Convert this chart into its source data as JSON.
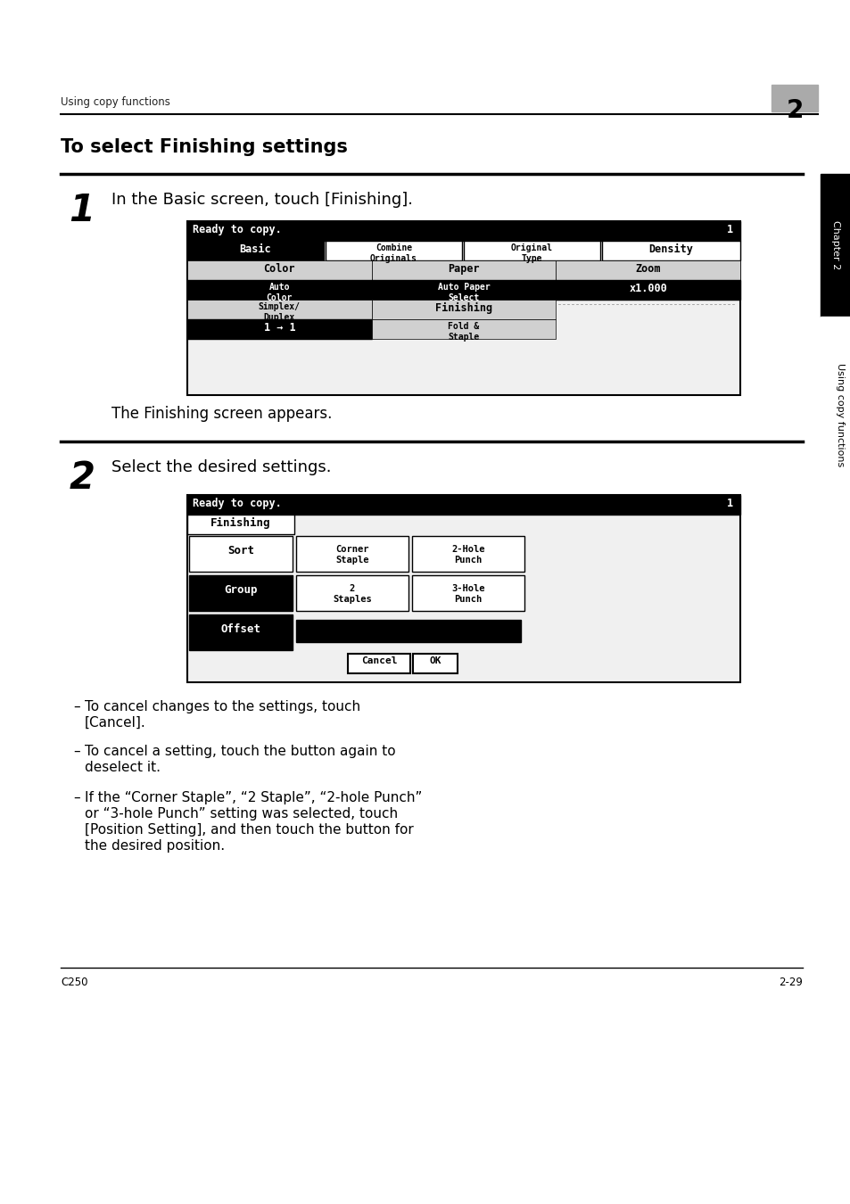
{
  "page_bg": "#ffffff",
  "header_text": "Using copy functions",
  "chapter_num": "2",
  "title": "To select Finishing settings",
  "step1_num": "1",
  "step1_text": "In the Basic screen, touch [Finishing].",
  "step1_subtext": "The Finishing screen appears.",
  "step2_num": "2",
  "step2_text": "Select the desired settings.",
  "footer_left": "C250",
  "footer_right": "2-29",
  "sidebar_text": "Using copy functions",
  "sidebar_bg": "#000000",
  "sidebar_chapter": "Chapter 2",
  "bullet_points": [
    "To cancel changes to the settings, touch [Cancel].",
    "To cancel a setting, touch the button again to deselect it.",
    "If the “Corner Staple”, “2 Staple”, “2-hole Punch” or “3-hole Punch” setting was selected, touch [Position Setting], and then touch the button for the desired position."
  ]
}
